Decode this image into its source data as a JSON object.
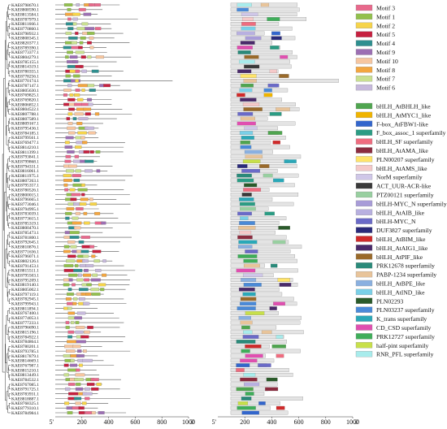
{
  "labels": [
    "KAE8798670.1",
    "KAE8808590.1",
    "KAE8813584.1",
    "KAE8787979.1",
    "KAE8811666.1",
    "KAE8770860.1",
    "KAE8798932.1",
    "KAE8808345.1",
    "KAE8820377.1",
    "KAE8789390.1",
    "KAE8773377.1",
    "KAE8804279.1",
    "KAE8785155.1",
    "KAE8814319.1",
    "KAE8780355.1",
    "KAE8778256.1",
    "KAE8770174.1",
    "KAE8787147.1",
    "KAE8805630.1",
    "KAE8769825.1",
    "KAE8769820.1",
    "KAE8806852.1",
    "KAE8804522.1",
    "KAE8807788.1",
    "KAE8807589.1",
    "KAE8809167.1",
    "KAE8795436.1",
    "KAE8784185.1",
    "KAE8799561.1",
    "KAE8769477.1",
    "KAE8814210.1",
    "KAE8811399.1",
    "KAE8793841.1",
    "KAE8799868.1",
    "KAE8794331.1",
    "KAE8816061.1",
    "KAE8811975.1",
    "KAE8807263.1",
    "KAE8795357.1",
    "KAE8780526.1",
    "KAE8800015.1",
    "KAE8796665.1",
    "KAE8773046.1",
    "KAE8794995.1",
    "KAE8783039.1",
    "KAE8773615.1",
    "KAE8785319.1",
    "KAE8800470.1",
    "KAE8785473.1",
    "KAE8781800.1",
    "KAE8792645.1",
    "KAE8810876.1",
    "KAE8771636.1",
    "KAE8796071.1",
    "KAE8802126.1",
    "KAE8791453.1",
    "KAE8815511.1",
    "KAE8795503.1",
    "KAE8795209.1",
    "KAE8819140.1",
    "KAE8805002.1",
    "KAE8797119.1",
    "KAE8782945.1",
    "KAE8799943.1",
    "KAE8811894.1",
    "KAE8767400.1",
    "KAE8774053.1",
    "KAE8777233.1",
    "KAE8796690.1",
    "KAE8815196.1",
    "KAE8784922.1",
    "KAE8784864.1",
    "KAE8780201.1",
    "KAE8793785.1",
    "KAE8817879.1",
    "KAE8814669.1",
    "KAE8767987.1",
    "KAE8815210.1",
    "KAE8813449.1",
    "KAE8784532.1",
    "KAE8767085.1",
    "KAE8791725.1",
    "KAE8783931.1",
    "KAE8818887.1",
    "KAE8768325.1",
    "KAE8779310.1",
    "KAE8784984.1"
  ],
  "left_axis": {
    "ticks": [
      "5'",
      "200",
      "400",
      "600",
      "800",
      "1000",
      "3'"
    ]
  },
  "right_axis": {
    "ticks": [
      "5'",
      "200",
      "400",
      "600",
      "800",
      "1000",
      "3'"
    ]
  },
  "motif_legend": [
    {
      "label": "Motif 3",
      "color": "#e8698c"
    },
    {
      "label": "Motif 1",
      "color": "#92c04d"
    },
    {
      "label": "Motif 2",
      "color": "#f6d44a"
    },
    {
      "label": "Motif 5",
      "color": "#c6203f"
    },
    {
      "label": "Motif 4",
      "color": "#2e8f8f"
    },
    {
      "label": "Motif 9",
      "color": "#9c6fb3"
    },
    {
      "label": "Motif 10",
      "color": "#f6c6a0"
    },
    {
      "label": "Motif 8",
      "color": "#f3a640"
    },
    {
      "label": "Motif 7",
      "color": "#c9e090"
    },
    {
      "label": "Motif 6",
      "color": "#c7b9dc"
    }
  ],
  "domain_legend": [
    {
      "label": "bHLH_AtBHLH_like",
      "color": "#4fa54f"
    },
    {
      "label": "bHLH_AtMYC1_like",
      "color": "#f0b400"
    },
    {
      "label": "F-box_AtFBW1-like",
      "color": "#3366cc"
    },
    {
      "label": "F_box_assoc_1 superfamily",
      "color": "#2b9c84"
    },
    {
      "label": "bHLH_SF superfamily",
      "color": "#ef6c7f"
    },
    {
      "label": "bHLH_AtAMA_like",
      "color": "#8b2c3f"
    },
    {
      "label": "PLN00207 superfamily",
      "color": "#ffe46a"
    },
    {
      "label": "bHLH_AtAMS_like",
      "color": "#f5c9c9"
    },
    {
      "label": "NorM superfamily",
      "color": "#cfc7e8"
    },
    {
      "label": "ACT_UUR-ACR-like",
      "color": "#3a3a3a"
    },
    {
      "label": "PTZ00121 superfamily",
      "color": "#98cfa0"
    },
    {
      "label": "bHLH-MYC_N superfamily",
      "color": "#a89cd8"
    },
    {
      "label": "bHLH_AtAIB_like",
      "color": "#b8b0e0"
    },
    {
      "label": "bHLH-MYC_N",
      "color": "#6a6ac8"
    },
    {
      "label": "DUF3827 superfamily",
      "color": "#2a2a7a"
    },
    {
      "label": "bHLH_AtBIM_like",
      "color": "#d02a2a"
    },
    {
      "label": "bHLH_AtAIG1_like",
      "color": "#4a2a6a"
    },
    {
      "label": "bHLH_AtPIF_like",
      "color": "#9a6a2a"
    },
    {
      "label": "PRK12678 superfamily",
      "color": "#2a8a7a"
    },
    {
      "label": "PABP-1234 superfamily",
      "color": "#e8c49a"
    },
    {
      "label": "bHLH_AtBPE_like",
      "color": "#8ab0e0"
    },
    {
      "label": "bHLH_AtIND_like",
      "color": "#7ad0e8"
    },
    {
      "label": "PLN02293",
      "color": "#2a5a2a"
    },
    {
      "label": "PLN03237 superfamily",
      "color": "#4a8ad8"
    },
    {
      "label": "K_trans superfamily",
      "color": "#2aa8b8"
    },
    {
      "label": "CD_CSD superfamily",
      "color": "#e04fb0"
    },
    {
      "label": "PRK12727 superfamily",
      "color": "#3fae5a"
    },
    {
      "label": "half-pint superfamily",
      "color": "#c8e04a"
    },
    {
      "label": "RNR_PFL superfamily",
      "color": "#a8ecec"
    }
  ]
}
